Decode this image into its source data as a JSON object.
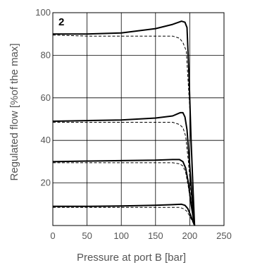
{
  "chart_data": {
    "type": "line",
    "panel_label": "2",
    "xlabel": "Pressure at port B [bar]",
    "ylabel": "Regulated flow [%of the max]",
    "xlim": [
      0,
      250
    ],
    "ylim": [
      0,
      100
    ],
    "x_ticks": [
      "0",
      "50",
      "100",
      "150",
      "200",
      "250"
    ],
    "y_ticks": [
      "20",
      "40",
      "60",
      "80",
      "100"
    ],
    "grid": true,
    "legend": "none",
    "series": [
      {
        "style": "solid",
        "points": [
          [
            0,
            90
          ],
          [
            50,
            90
          ],
          [
            100,
            90.5
          ],
          [
            150,
            92.5
          ],
          [
            175,
            94.5
          ],
          [
            188,
            96
          ],
          [
            193,
            95.5
          ],
          [
            196,
            93
          ],
          [
            199,
            70
          ],
          [
            202,
            40
          ],
          [
            205,
            15
          ],
          [
            207,
            0
          ]
        ]
      },
      {
        "style": "dashed",
        "points": [
          [
            0,
            89.5
          ],
          [
            50,
            89
          ],
          [
            100,
            89
          ],
          [
            150,
            89
          ],
          [
            175,
            89
          ],
          [
            185,
            88
          ],
          [
            190,
            86
          ],
          [
            195,
            82
          ],
          [
            200,
            55
          ],
          [
            204,
            25
          ],
          [
            207,
            0
          ]
        ]
      },
      {
        "style": "solid",
        "points": [
          [
            0,
            49
          ],
          [
            50,
            49.3
          ],
          [
            100,
            49.6
          ],
          [
            150,
            50.5
          ],
          [
            175,
            51.5
          ],
          [
            186,
            53
          ],
          [
            190,
            53
          ],
          [
            193,
            51
          ],
          [
            196,
            45
          ],
          [
            200,
            28
          ],
          [
            204,
            10
          ],
          [
            207,
            0
          ]
        ]
      },
      {
        "style": "dashed",
        "points": [
          [
            0,
            48.5
          ],
          [
            50,
            48.5
          ],
          [
            100,
            48.5
          ],
          [
            150,
            48.5
          ],
          [
            175,
            48.5
          ],
          [
            185,
            47.5
          ],
          [
            190,
            46
          ],
          [
            194,
            42
          ],
          [
            198,
            30
          ],
          [
            202,
            15
          ],
          [
            206,
            3
          ],
          [
            207,
            0
          ]
        ]
      },
      {
        "style": "solid",
        "points": [
          [
            0,
            30
          ],
          [
            50,
            30.3
          ],
          [
            100,
            30.5
          ],
          [
            150,
            30.7
          ],
          [
            175,
            31
          ],
          [
            185,
            31
          ],
          [
            190,
            30
          ],
          [
            194,
            27
          ],
          [
            198,
            20
          ],
          [
            202,
            10
          ],
          [
            206,
            2
          ],
          [
            207,
            0
          ]
        ]
      },
      {
        "style": "dashed",
        "points": [
          [
            0,
            29.5
          ],
          [
            50,
            29.5
          ],
          [
            100,
            29.5
          ],
          [
            150,
            29.5
          ],
          [
            175,
            29.5
          ],
          [
            185,
            29
          ],
          [
            190,
            28
          ],
          [
            194,
            25
          ],
          [
            198,
            18
          ],
          [
            202,
            9
          ],
          [
            207,
            0
          ]
        ]
      },
      {
        "style": "solid",
        "points": [
          [
            0,
            9
          ],
          [
            50,
            9
          ],
          [
            100,
            9.2
          ],
          [
            150,
            9.5
          ],
          [
            175,
            9.8
          ],
          [
            188,
            10
          ],
          [
            193,
            9.5
          ],
          [
            197,
            8
          ],
          [
            201,
            5
          ],
          [
            204,
            2.5
          ],
          [
            207,
            0
          ]
        ]
      },
      {
        "style": "dashed",
        "points": [
          [
            0,
            8.5
          ],
          [
            50,
            8.5
          ],
          [
            100,
            8.5
          ],
          [
            150,
            8.5
          ],
          [
            175,
            8.5
          ],
          [
            185,
            8.5
          ],
          [
            190,
            8
          ],
          [
            195,
            7
          ],
          [
            199,
            5
          ],
          [
            203,
            2.5
          ],
          [
            207,
            0
          ]
        ]
      }
    ]
  }
}
